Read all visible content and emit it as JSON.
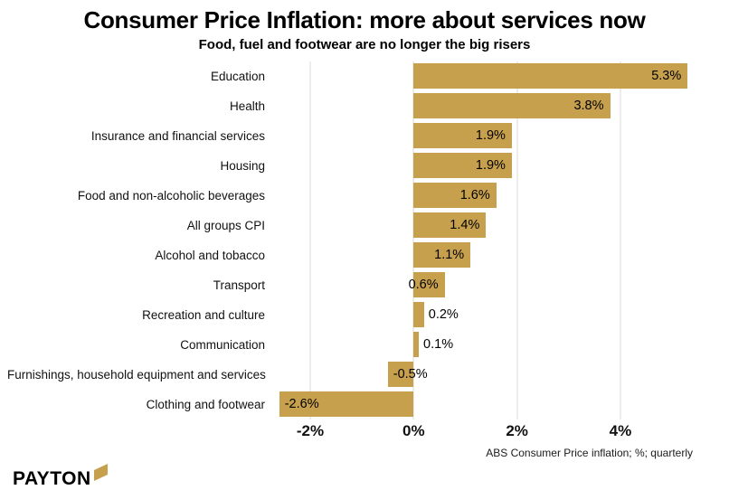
{
  "header": {
    "title": "Consumer Price Inflation: more about services now",
    "subtitle": "Food, fuel and footwear are no longer the big risers"
  },
  "chart_data": {
    "type": "bar",
    "orientation": "horizontal",
    "title": "Consumer Price Inflation: more about services now",
    "subtitle": "Food, fuel and footwear are no longer the big risers",
    "categories": [
      "Education",
      "Health",
      "Insurance and financial services",
      "Housing",
      "Food and non-alcoholic beverages",
      "All groups CPI",
      "Alcohol and tobacco",
      "Transport",
      "Recreation and culture",
      "Communication",
      "Furnishings, household equipment and services",
      "Clothing and footwear"
    ],
    "values": [
      5.3,
      3.8,
      1.9,
      1.9,
      1.6,
      1.4,
      1.1,
      0.6,
      0.2,
      0.1,
      -0.5,
      -2.6
    ],
    "value_labels": [
      "5.3%",
      "3.8%",
      "1.9%",
      "1.9%",
      "1.6%",
      "1.4%",
      "1.1%",
      "0.6%",
      "0.2%",
      "0.1%",
      "-0.5%",
      "-2.6%"
    ],
    "x_ticks": [
      {
        "value": -2,
        "label": "-2%"
      },
      {
        "value": 0,
        "label": "0%"
      },
      {
        "value": 2,
        "label": "2%"
      },
      {
        "value": 4,
        "label": "4%"
      }
    ],
    "xlim": [
      -2.7,
      5.4
    ],
    "grid": true,
    "bar_color": "#c7a04e",
    "grid_color": "#d9d9d9",
    "caption": "ABS Consumer Price inflation; %; quarterly"
  },
  "footer": {
    "logo_text": "PAYTON",
    "logo_color": "#c7a04e"
  }
}
